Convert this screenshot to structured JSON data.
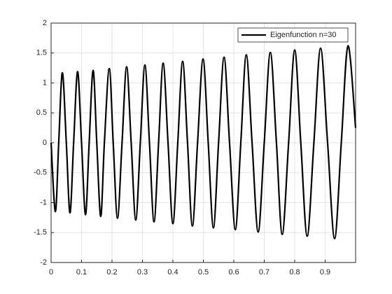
{
  "chart_data": {
    "type": "line",
    "x": [
      0,
      0.014,
      0.025,
      0.037,
      0.05,
      0.062,
      0.074,
      0.087,
      0.1,
      0.113,
      0.125,
      0.138,
      0.15,
      0.163,
      0.175,
      0.191,
      0.204,
      0.218,
      0.233,
      0.248,
      0.263,
      0.278,
      0.293,
      0.308,
      0.323,
      0.338,
      0.353,
      0.368,
      0.384,
      0.4,
      0.416,
      0.432,
      0.448,
      0.464,
      0.481,
      0.499,
      0.516,
      0.533,
      0.55,
      0.568,
      0.586,
      0.605,
      0.623,
      0.641,
      0.66,
      0.68,
      0.7,
      0.72,
      0.74,
      0.759,
      0.78,
      0.8,
      0.82,
      0.841,
      0.863,
      0.885,
      0.908,
      0.931,
      0.953,
      0.975,
      1.0
    ],
    "series": [
      {
        "name": "Eigenfunction n=30",
        "color": "#000000",
        "values": [
          0,
          -1.15,
          0,
          1.17,
          0,
          -1.17,
          0,
          1.19,
          0,
          -1.2,
          0,
          1.21,
          0,
          -1.23,
          0,
          1.24,
          0,
          -1.26,
          0,
          1.27,
          0,
          -1.29,
          0,
          1.3,
          0,
          -1.32,
          0,
          1.33,
          0,
          -1.35,
          0,
          1.36,
          0,
          -1.39,
          0,
          1.4,
          0,
          -1.42,
          0,
          1.43,
          0,
          -1.45,
          0,
          1.47,
          0,
          -1.49,
          0,
          1.51,
          0,
          -1.53,
          0,
          1.55,
          0,
          -1.56,
          0,
          1.58,
          0,
          -1.6,
          0,
          1.62,
          0.25
        ]
      }
    ],
    "xlim": [
      0,
      1
    ],
    "xticks": [
      0,
      0.1,
      0.2,
      0.3,
      0.4,
      0.5,
      0.6,
      0.7,
      0.8,
      0.9
    ],
    "ylim": [
      -2,
      2
    ],
    "yticks": [
      -2,
      -1.5,
      -1,
      -0.5,
      0,
      0.5,
      1,
      1.5,
      2
    ],
    "grid": true,
    "legend": "top-right"
  }
}
